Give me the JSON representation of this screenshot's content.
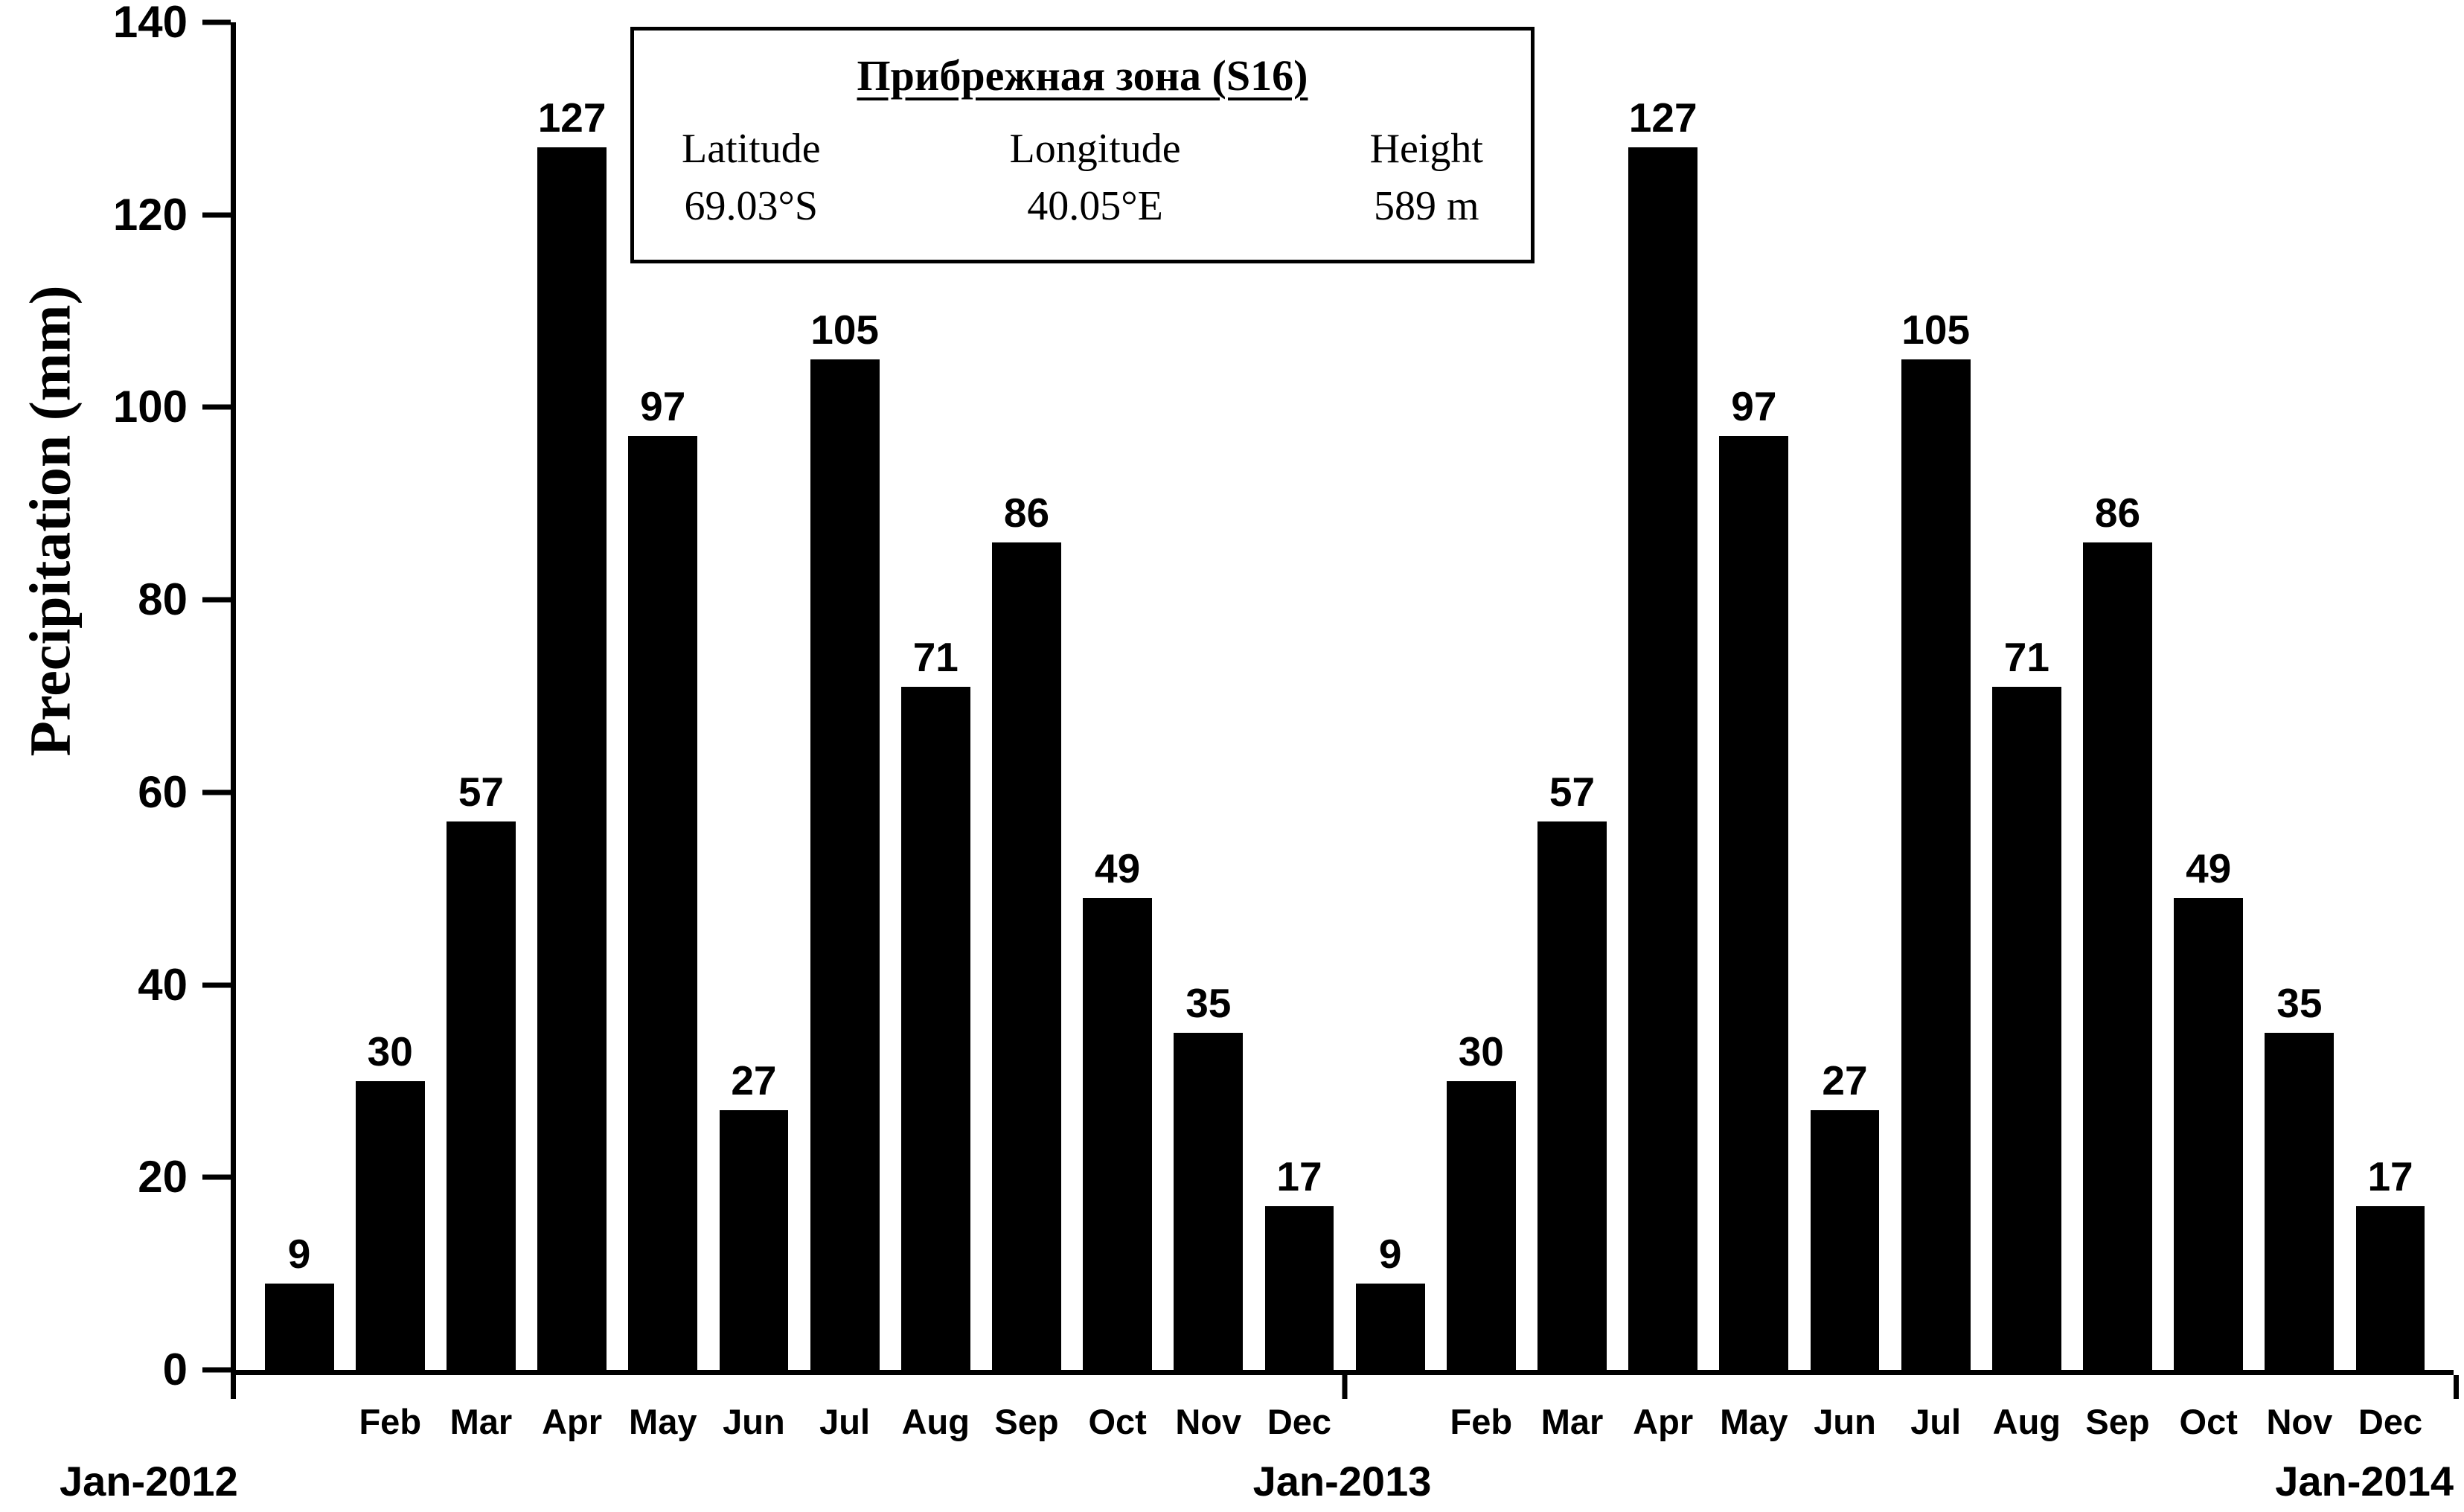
{
  "chart_data": {
    "type": "bar",
    "title": "",
    "ylabel": "Precipitation (mm)",
    "xlabel": "",
    "ylim": [
      0,
      140
    ],
    "yticks": [
      0,
      20,
      40,
      60,
      80,
      100,
      120,
      140
    ],
    "grid": false,
    "bar_color": "#000000",
    "categories": [
      "Jan-2012",
      "Feb-2012",
      "Mar-2012",
      "Apr-2012",
      "May-2012",
      "Jun-2012",
      "Jul-2012",
      "Aug-2012",
      "Sep-2012",
      "Oct-2012",
      "Nov-2012",
      "Dec-2012",
      "Jan-2013",
      "Feb-2013",
      "Mar-2013",
      "Apr-2013",
      "May-2013",
      "Jun-2013",
      "Jul-2013",
      "Aug-2013",
      "Sep-2013",
      "Oct-2013",
      "Nov-2013",
      "Dec-2013"
    ],
    "month_tick_labels": [
      "",
      "Feb",
      "Mar",
      "Apr",
      "May",
      "Jun",
      "Jul",
      "Aug",
      "Sep",
      "Oct",
      "Nov",
      "Dec",
      "",
      "Feb",
      "Mar",
      "Apr",
      "May",
      "Jun",
      "Jul",
      "Aug",
      "Sep",
      "Oct",
      "Nov",
      "Dec"
    ],
    "values": [
      9,
      30,
      57,
      127,
      97,
      27,
      105,
      71,
      86,
      49,
      35,
      17,
      9,
      30,
      57,
      127,
      97,
      27,
      105,
      71,
      86,
      49,
      35,
      17
    ],
    "year_labels": [
      {
        "text": "Jan-2012",
        "position": "left"
      },
      {
        "text": "Jan-2013",
        "position": "middle"
      },
      {
        "text": "Jan-2014",
        "position": "right"
      }
    ],
    "station": {
      "title": "Прибрежная зона (S16)",
      "fields": [
        {
          "label": "Latitude",
          "value": "69.03°S"
        },
        {
          "label": "Longitude",
          "value": "40.05°E"
        },
        {
          "label": "Height",
          "value": "589 m"
        }
      ]
    }
  }
}
